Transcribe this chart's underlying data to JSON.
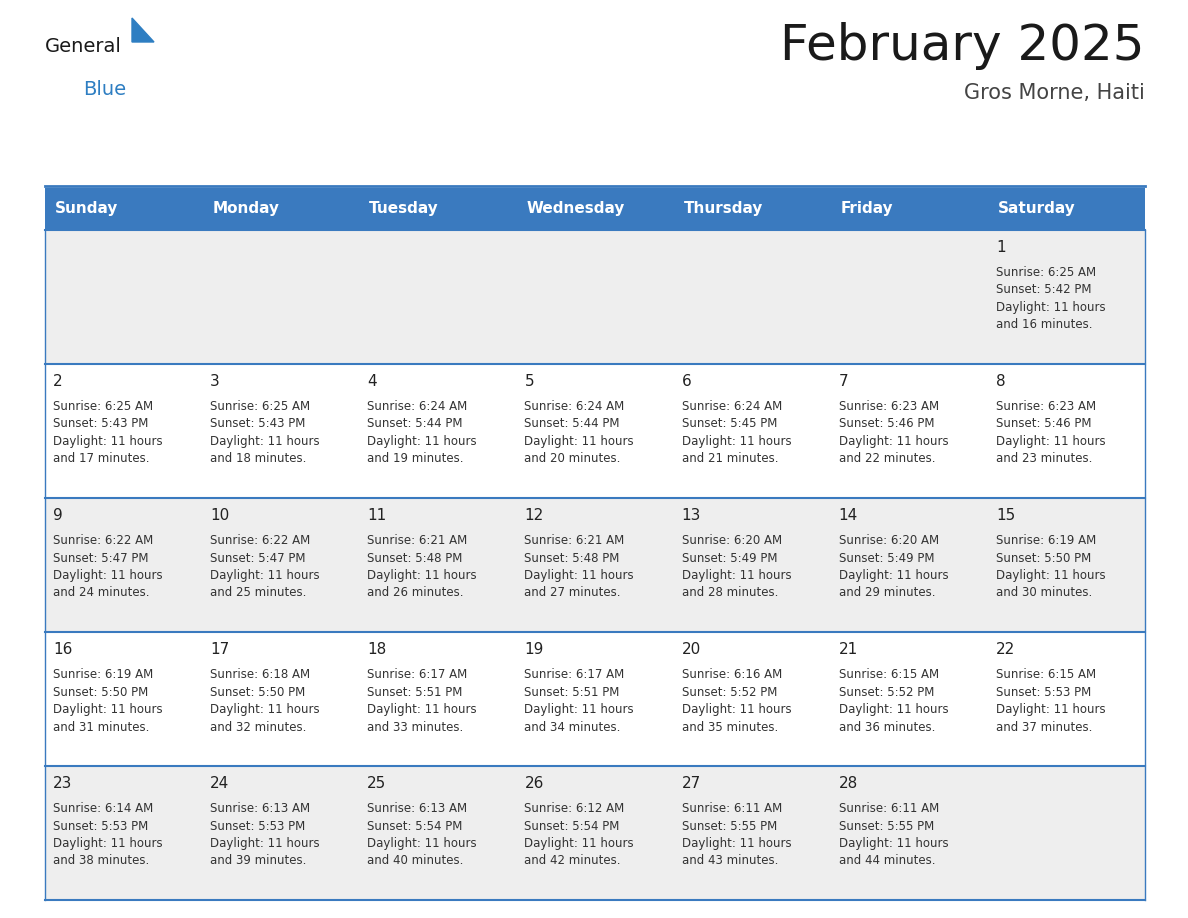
{
  "title": "February 2025",
  "subtitle": "Gros Morne, Haiti",
  "days_of_week": [
    "Sunday",
    "Monday",
    "Tuesday",
    "Wednesday",
    "Thursday",
    "Friday",
    "Saturday"
  ],
  "header_bg": "#3a7abf",
  "header_text": "#ffffff",
  "cell_bg_odd": "#eeeeee",
  "cell_bg_even": "#ffffff",
  "cell_border": "#3a7abf",
  "title_color": "#1a1a1a",
  "subtitle_color": "#444444",
  "day_number_color": "#222222",
  "text_color": "#333333",
  "logo_general_color": "#1a1a1a",
  "logo_blue_color": "#2e7ec2",
  "calendar_data": [
    [
      null,
      null,
      null,
      null,
      null,
      null,
      {
        "day": 1,
        "sunrise": "6:25 AM",
        "sunset": "5:42 PM",
        "daylight": "11 hours and 16 minutes."
      }
    ],
    [
      {
        "day": 2,
        "sunrise": "6:25 AM",
        "sunset": "5:43 PM",
        "daylight": "11 hours and 17 minutes."
      },
      {
        "day": 3,
        "sunrise": "6:25 AM",
        "sunset": "5:43 PM",
        "daylight": "11 hours and 18 minutes."
      },
      {
        "day": 4,
        "sunrise": "6:24 AM",
        "sunset": "5:44 PM",
        "daylight": "11 hours and 19 minutes."
      },
      {
        "day": 5,
        "sunrise": "6:24 AM",
        "sunset": "5:44 PM",
        "daylight": "11 hours and 20 minutes."
      },
      {
        "day": 6,
        "sunrise": "6:24 AM",
        "sunset": "5:45 PM",
        "daylight": "11 hours and 21 minutes."
      },
      {
        "day": 7,
        "sunrise": "6:23 AM",
        "sunset": "5:46 PM",
        "daylight": "11 hours and 22 minutes."
      },
      {
        "day": 8,
        "sunrise": "6:23 AM",
        "sunset": "5:46 PM",
        "daylight": "11 hours and 23 minutes."
      }
    ],
    [
      {
        "day": 9,
        "sunrise": "6:22 AM",
        "sunset": "5:47 PM",
        "daylight": "11 hours and 24 minutes."
      },
      {
        "day": 10,
        "sunrise": "6:22 AM",
        "sunset": "5:47 PM",
        "daylight": "11 hours and 25 minutes."
      },
      {
        "day": 11,
        "sunrise": "6:21 AM",
        "sunset": "5:48 PM",
        "daylight": "11 hours and 26 minutes."
      },
      {
        "day": 12,
        "sunrise": "6:21 AM",
        "sunset": "5:48 PM",
        "daylight": "11 hours and 27 minutes."
      },
      {
        "day": 13,
        "sunrise": "6:20 AM",
        "sunset": "5:49 PM",
        "daylight": "11 hours and 28 minutes."
      },
      {
        "day": 14,
        "sunrise": "6:20 AM",
        "sunset": "5:49 PM",
        "daylight": "11 hours and 29 minutes."
      },
      {
        "day": 15,
        "sunrise": "6:19 AM",
        "sunset": "5:50 PM",
        "daylight": "11 hours and 30 minutes."
      }
    ],
    [
      {
        "day": 16,
        "sunrise": "6:19 AM",
        "sunset": "5:50 PM",
        "daylight": "11 hours and 31 minutes."
      },
      {
        "day": 17,
        "sunrise": "6:18 AM",
        "sunset": "5:50 PM",
        "daylight": "11 hours and 32 minutes."
      },
      {
        "day": 18,
        "sunrise": "6:17 AM",
        "sunset": "5:51 PM",
        "daylight": "11 hours and 33 minutes."
      },
      {
        "day": 19,
        "sunrise": "6:17 AM",
        "sunset": "5:51 PM",
        "daylight": "11 hours and 34 minutes."
      },
      {
        "day": 20,
        "sunrise": "6:16 AM",
        "sunset": "5:52 PM",
        "daylight": "11 hours and 35 minutes."
      },
      {
        "day": 21,
        "sunrise": "6:15 AM",
        "sunset": "5:52 PM",
        "daylight": "11 hours and 36 minutes."
      },
      {
        "day": 22,
        "sunrise": "6:15 AM",
        "sunset": "5:53 PM",
        "daylight": "11 hours and 37 minutes."
      }
    ],
    [
      {
        "day": 23,
        "sunrise": "6:14 AM",
        "sunset": "5:53 PM",
        "daylight": "11 hours and 38 minutes."
      },
      {
        "day": 24,
        "sunrise": "6:13 AM",
        "sunset": "5:53 PM",
        "daylight": "11 hours and 39 minutes."
      },
      {
        "day": 25,
        "sunrise": "6:13 AM",
        "sunset": "5:54 PM",
        "daylight": "11 hours and 40 minutes."
      },
      {
        "day": 26,
        "sunrise": "6:12 AM",
        "sunset": "5:54 PM",
        "daylight": "11 hours and 42 minutes."
      },
      {
        "day": 27,
        "sunrise": "6:11 AM",
        "sunset": "5:55 PM",
        "daylight": "11 hours and 43 minutes."
      },
      {
        "day": 28,
        "sunrise": "6:11 AM",
        "sunset": "5:55 PM",
        "daylight": "11 hours and 44 minutes."
      },
      null
    ]
  ]
}
